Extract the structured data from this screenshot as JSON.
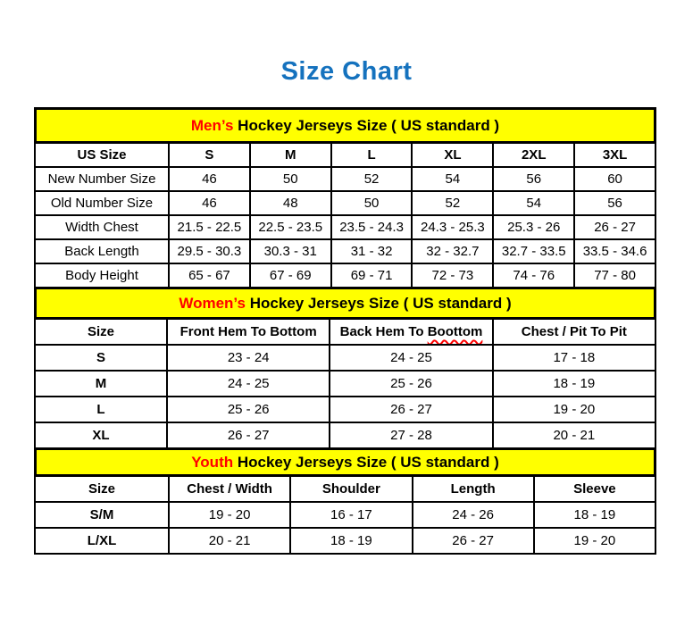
{
  "page": {
    "title": "Size Chart"
  },
  "colors": {
    "title-blue": "#1572be",
    "band-yellow": "#ffff00",
    "accent-red": "#ff0000",
    "line-black": "#000000",
    "text-black": "#000000",
    "page-bg": "#ffffff"
  },
  "sections": [
    {
      "id": "mens",
      "band": {
        "highlight": "Men’s",
        "rest": " Hockey Jerseys Size ( US standard )"
      },
      "columns": [
        "US Size",
        "S",
        "M",
        "L",
        "XL",
        "2XL",
        "3XL"
      ],
      "rows": [
        [
          "New Number Size",
          "46",
          "50",
          "52",
          "54",
          "56",
          "60"
        ],
        [
          "Old Number Size",
          "46",
          "48",
          "50",
          "52",
          "54",
          "56"
        ],
        [
          "Width Chest",
          "21.5 - 22.5",
          "22.5 - 23.5",
          "23.5 - 24.3",
          "24.3 - 25.3",
          "25.3 - 26",
          "26 - 27"
        ],
        [
          "Back Length",
          "29.5 - 30.3",
          "30.3 - 31",
          "31 - 32",
          "32 - 32.7",
          "32.7 - 33.5",
          "33.5 - 34.6"
        ],
        [
          "Body Height",
          "65 - 67",
          "67 - 69",
          "69 - 71",
          "72 - 73",
          "74 - 76",
          "77 - 80"
        ]
      ]
    },
    {
      "id": "womens",
      "band": {
        "highlight": "Women’s",
        "rest": " Hockey Jerseys Size ( US standard )"
      },
      "columns": [
        "Size",
        "Front Hem To Bottom",
        "Back Hem To Boottom",
        "Chest / Pit To Pit"
      ],
      "spellcheck": {
        "column": 2,
        "word": "Boottom"
      },
      "rows": [
        [
          "S",
          "23 - 24",
          "24 - 25",
          "17 - 18"
        ],
        [
          "M",
          "24 - 25",
          "25 - 26",
          "18 - 19"
        ],
        [
          "L",
          "25 - 26",
          "26 - 27",
          "19 - 20"
        ],
        [
          "XL",
          "26 - 27",
          "27 - 28",
          "20 - 21"
        ]
      ]
    },
    {
      "id": "youth",
      "band": {
        "highlight": "Youth",
        "rest": " Hockey Jerseys Size ( US standard )"
      },
      "columns": [
        "Size",
        "Chest / Width",
        "Shoulder",
        "Length",
        "Sleeve"
      ],
      "rows": [
        [
          "S/M",
          "19 - 20",
          "16 - 17",
          "24 - 26",
          "18 - 19"
        ],
        [
          "L/XL",
          "20 - 21",
          "18 - 19",
          "26 - 27",
          "19 - 20"
        ]
      ]
    }
  ]
}
